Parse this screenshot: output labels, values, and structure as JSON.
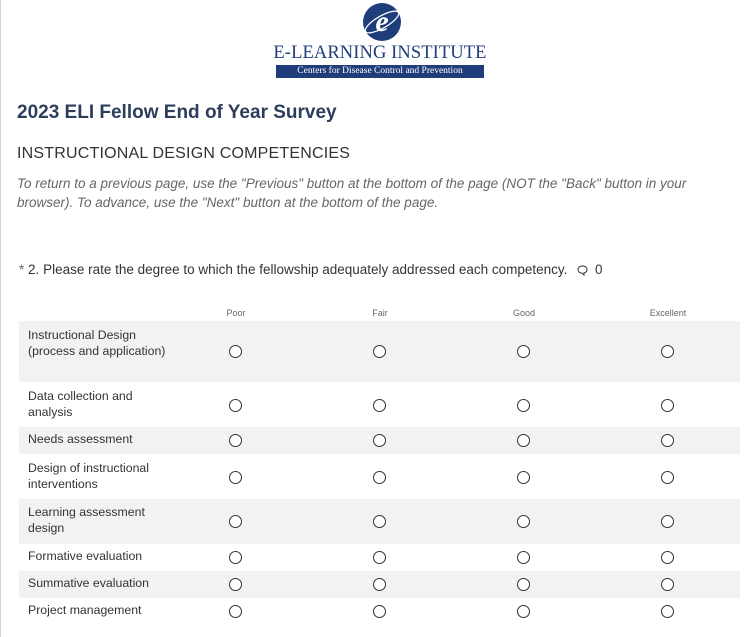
{
  "header": {
    "logo_title": "E-LEARNING INSTITUTE",
    "logo_subtitle": "Centers for Disease Control and Prevention",
    "logo_letter": "e"
  },
  "survey": {
    "title": "2023 ELI Fellow End of Year Survey",
    "section": "INSTRUCTIONAL DESIGN COMPETENCIES",
    "instructions": "To return to a previous page, use the \"Previous\" button at the bottom of the page (NOT the \"Back\" button in your browser). To advance, use the \"Next\" button at the bottom of the page."
  },
  "question": {
    "required_mark": "*",
    "number": "2.",
    "text": "Please rate the degree to which the fellowship adequately addressed each competency.",
    "comment_icon": "comment-icon",
    "comment_count": "0"
  },
  "scale": [
    "Poor",
    "Fair",
    "Good",
    "Excellent"
  ],
  "rows": [
    {
      "label": "Instructional Design (process and application)"
    },
    {
      "label": "Data collection and analysis"
    },
    {
      "label": "Needs assessment"
    },
    {
      "label": "Design of instructional interventions"
    },
    {
      "label": "Learning assessment design"
    },
    {
      "label": "Formative evaluation"
    },
    {
      "label": "Summative evaluation"
    },
    {
      "label": "Project management"
    }
  ],
  "colors": {
    "brand_blue": "#1f3d7a",
    "title_navy": "#2d3e5c",
    "row_shade": "#f2f2f2",
    "muted_text": "#666666"
  }
}
